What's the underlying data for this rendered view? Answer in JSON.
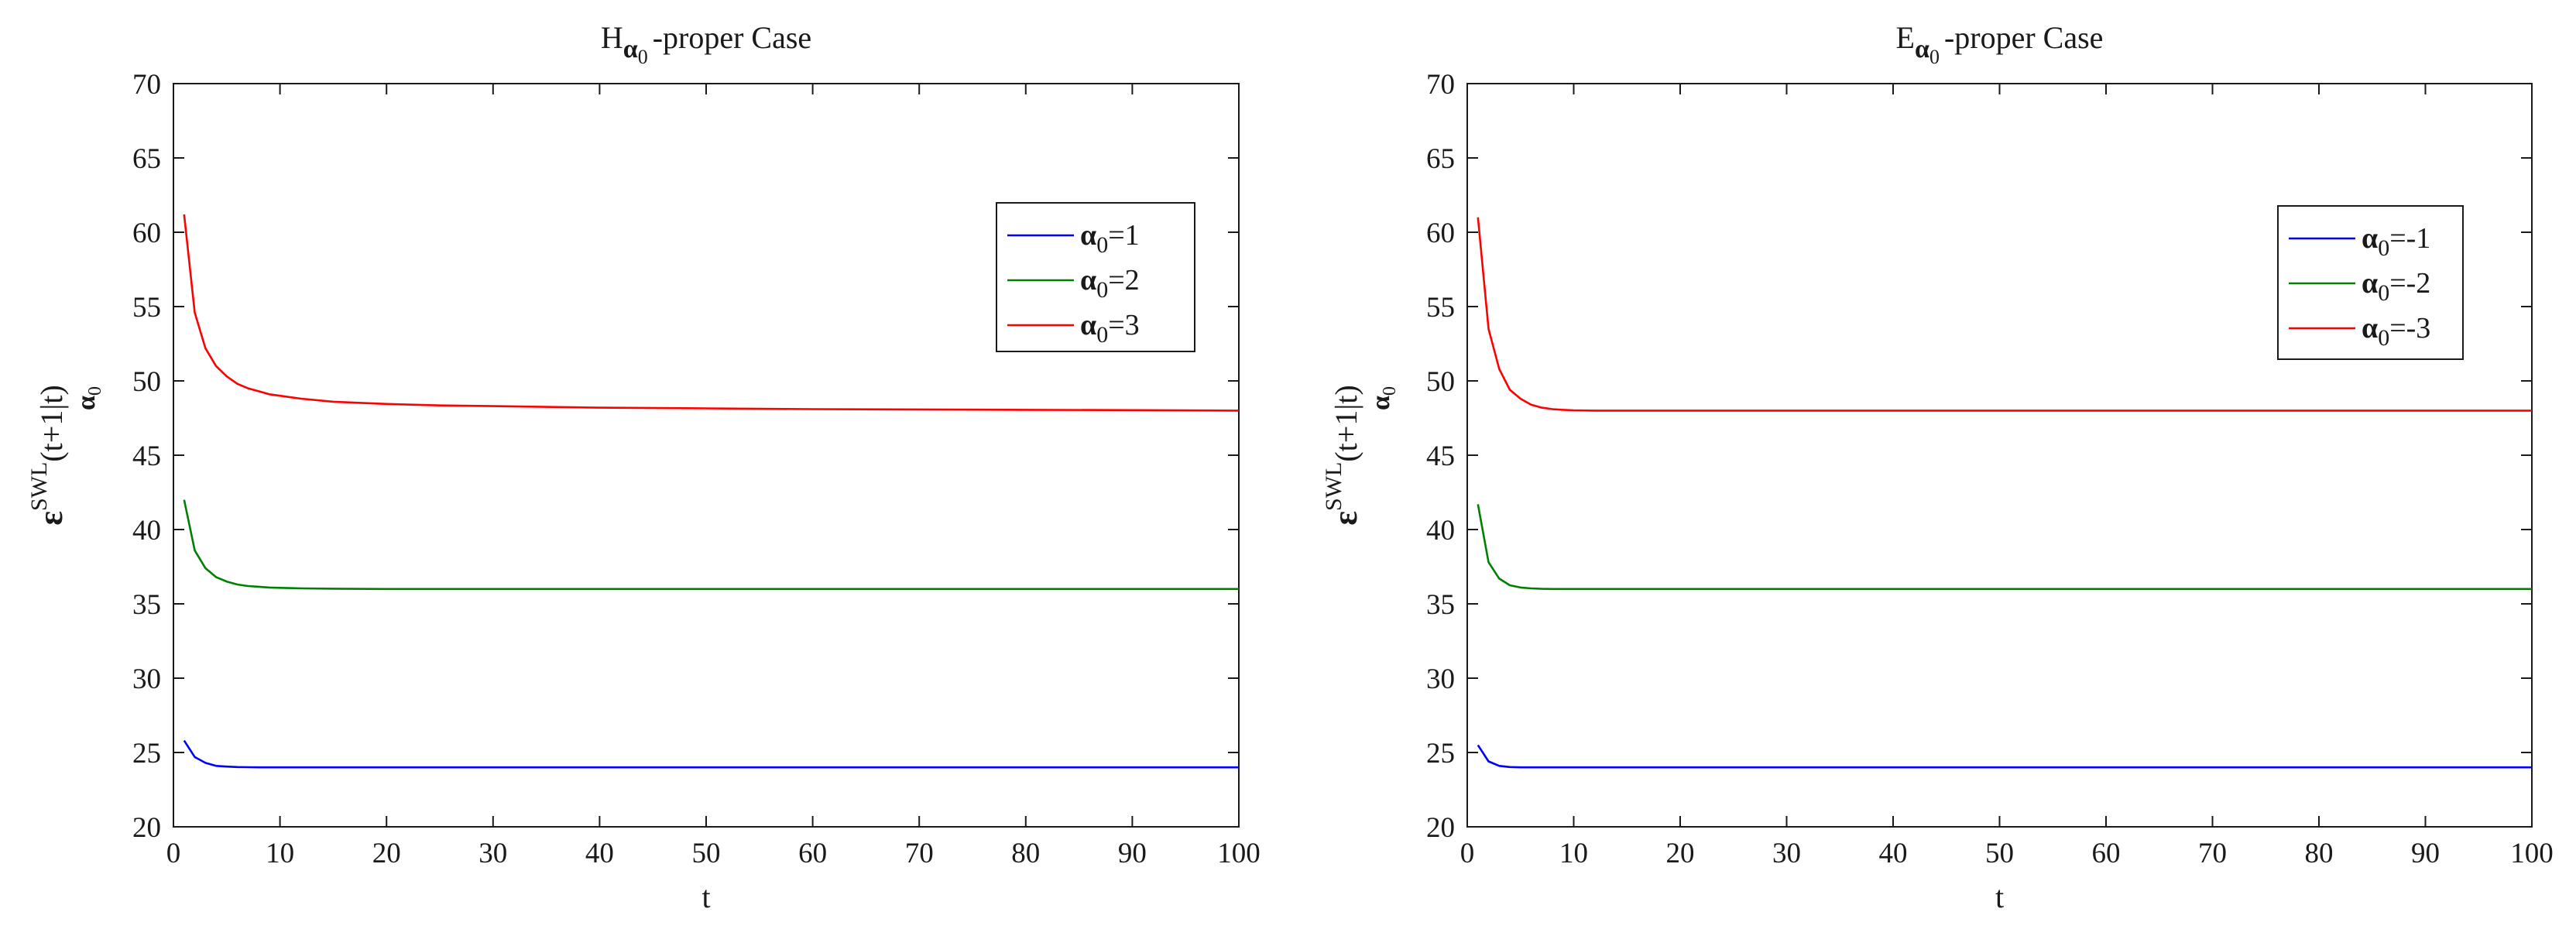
{
  "chart_data": [
    {
      "type": "line",
      "title": {
        "prefix": "H",
        "sub_symbol": "α",
        "sub_index": "0",
        "suffix": "-proper Case"
      },
      "xlabel": "t",
      "ylabel": {
        "symbol": "ε",
        "sup": "SWL",
        "sub_symbol": "α",
        "sub_index": "0",
        "suffix": "(t+1|t)"
      },
      "xlim": [
        0,
        100
      ],
      "ylim": [
        20,
        70
      ],
      "xticks": [
        0,
        10,
        20,
        30,
        40,
        50,
        60,
        70,
        80,
        90,
        100
      ],
      "yticks": [
        20,
        25,
        30,
        35,
        40,
        45,
        50,
        55,
        60,
        65,
        70
      ],
      "legend_position": "top-right",
      "series": [
        {
          "name": "α0=1",
          "label_symbol": "α",
          "label_index": "0",
          "label_value": "=1",
          "color": "#0000ff",
          "x": [
            1,
            2,
            3,
            4,
            5,
            6,
            7,
            8,
            9,
            10,
            12,
            15,
            20,
            30,
            40,
            50,
            60,
            70,
            80,
            90,
            100
          ],
          "y": [
            25.8,
            24.7,
            24.3,
            24.1,
            24.05,
            24.02,
            24.01,
            24.0,
            24.0,
            24.0,
            24.0,
            24.0,
            24.0,
            24.0,
            24.0,
            24.0,
            24.0,
            24.0,
            24.0,
            24.0,
            24.0
          ]
        },
        {
          "name": "α0=2",
          "label_symbol": "α",
          "label_index": "0",
          "label_value": "=2",
          "color": "#008000",
          "x": [
            1,
            2,
            3,
            4,
            5,
            6,
            7,
            8,
            9,
            10,
            12,
            15,
            20,
            30,
            40,
            50,
            60,
            70,
            80,
            90,
            100
          ],
          "y": [
            42.0,
            38.6,
            37.4,
            36.8,
            36.5,
            36.3,
            36.2,
            36.15,
            36.1,
            36.08,
            36.04,
            36.02,
            36.0,
            36.0,
            36.0,
            36.0,
            36.0,
            36.0,
            36.0,
            36.0,
            36.0
          ]
        },
        {
          "name": "α0=3",
          "label_symbol": "α",
          "label_index": "0",
          "label_value": "=3",
          "color": "#ff0000",
          "x": [
            1,
            2,
            3,
            4,
            5,
            6,
            7,
            8,
            9,
            10,
            12,
            15,
            20,
            25,
            30,
            40,
            50,
            60,
            70,
            80,
            90,
            100
          ],
          "y": [
            61.2,
            54.6,
            52.2,
            51.0,
            50.3,
            49.8,
            49.5,
            49.3,
            49.1,
            49.0,
            48.8,
            48.6,
            48.45,
            48.35,
            48.3,
            48.2,
            48.15,
            48.1,
            48.08,
            48.05,
            48.03,
            48.0
          ]
        }
      ]
    },
    {
      "type": "line",
      "title": {
        "prefix": "E",
        "sub_symbol": "α",
        "sub_index": "0",
        "suffix": "-proper Case"
      },
      "xlabel": "t",
      "ylabel": {
        "symbol": "ε",
        "sup": "SWL",
        "sub_symbol": "α",
        "sub_index": "0",
        "suffix": "(t+1|t)"
      },
      "xlim": [
        0,
        100
      ],
      "ylim": [
        20,
        70
      ],
      "xticks": [
        0,
        10,
        20,
        30,
        40,
        50,
        60,
        70,
        80,
        90,
        100
      ],
      "yticks": [
        20,
        25,
        30,
        35,
        40,
        45,
        50,
        55,
        60,
        65,
        70
      ],
      "legend_position": "top-right",
      "series": [
        {
          "name": "α0=-1",
          "label_symbol": "α",
          "label_index": "0",
          "label_value": "=-1",
          "color": "#0000ff",
          "x": [
            1,
            2,
            3,
            4,
            5,
            6,
            8,
            10,
            20,
            30,
            40,
            50,
            60,
            70,
            80,
            90,
            100
          ],
          "y": [
            25.5,
            24.4,
            24.1,
            24.02,
            24.0,
            24.0,
            24.0,
            24.0,
            24.0,
            24.0,
            24.0,
            24.0,
            24.0,
            24.0,
            24.0,
            24.0,
            24.0
          ]
        },
        {
          "name": "α0=-2",
          "label_symbol": "α",
          "label_index": "0",
          "label_value": "=-2",
          "color": "#008000",
          "x": [
            1,
            2,
            3,
            4,
            5,
            6,
            7,
            8,
            10,
            20,
            30,
            40,
            50,
            60,
            70,
            80,
            90,
            100
          ],
          "y": [
            41.7,
            37.8,
            36.7,
            36.25,
            36.1,
            36.04,
            36.01,
            36.0,
            36.0,
            36.0,
            36.0,
            36.0,
            36.0,
            36.0,
            36.0,
            36.0,
            36.0,
            36.0
          ]
        },
        {
          "name": "α0=-3",
          "label_symbol": "α",
          "label_index": "0",
          "label_value": "=-3",
          "color": "#ff0000",
          "x": [
            1,
            2,
            3,
            4,
            5,
            6,
            7,
            8,
            9,
            10,
            12,
            15,
            20,
            30,
            40,
            50,
            60,
            70,
            80,
            90,
            100
          ],
          "y": [
            61.0,
            53.5,
            50.8,
            49.4,
            48.8,
            48.4,
            48.2,
            48.1,
            48.05,
            48.02,
            48.0,
            48.0,
            48.0,
            48.0,
            48.0,
            48.0,
            48.0,
            48.0,
            48.0,
            48.0,
            48.0
          ]
        }
      ]
    }
  ]
}
